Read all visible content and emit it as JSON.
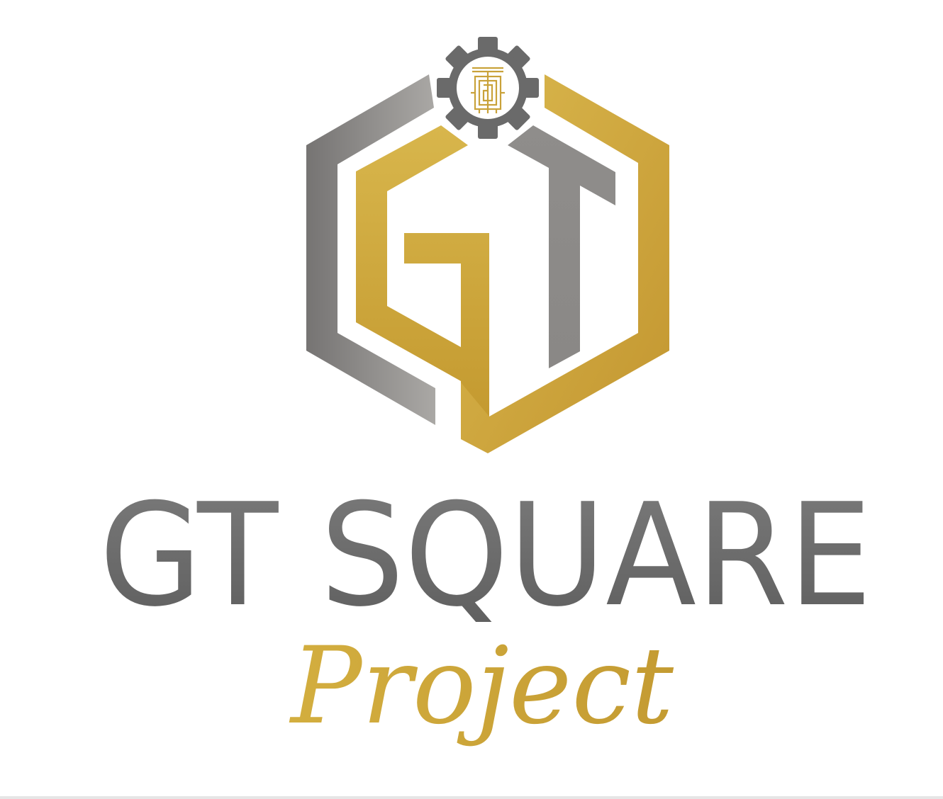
{
  "logo": {
    "monogram": "GT",
    "name": "GT SQUARE",
    "tagline": "Project"
  },
  "colors": {
    "gold_light": "#dcb74a",
    "gold_dark": "#c39a32",
    "gray_light": "#a7a5a2",
    "gray_dark": "#6e6c6b",
    "text_gray": "#646464",
    "background": "#ffffff"
  },
  "icons": {
    "emblem": "gt-hexagon-emblem",
    "gear": "gear-icon",
    "circuit": "circuit-monogram-icon"
  }
}
